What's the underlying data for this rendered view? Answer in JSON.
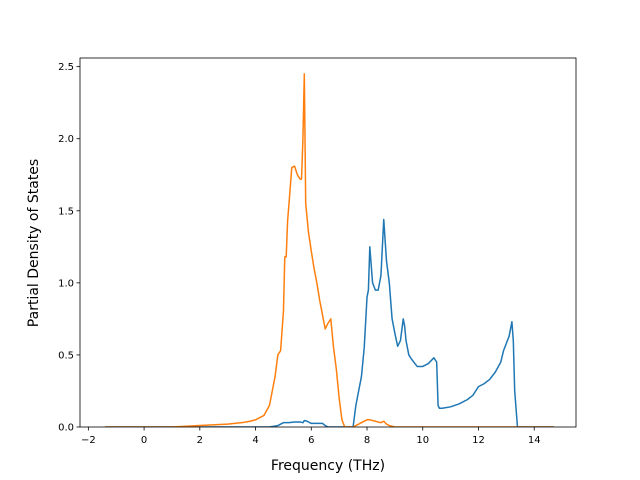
{
  "chart_data": {
    "type": "line",
    "title": "",
    "xlabel": "Frequency (THz)",
    "ylabel": "Partial Density of States",
    "xlim": [
      -2.3,
      15.5
    ],
    "ylim": [
      0,
      2.56
    ],
    "xticks": [
      -2,
      0,
      2,
      4,
      6,
      8,
      10,
      12,
      14
    ],
    "xtick_labels": [
      "−2",
      "0",
      "2",
      "4",
      "6",
      "8",
      "10",
      "12",
      "14"
    ],
    "yticks": [
      0,
      0.5,
      1.0,
      1.5,
      2.0,
      2.5
    ],
    "ytick_labels": [
      "0.0",
      "0.5",
      "1.0",
      "1.5",
      "2.0",
      "2.5"
    ],
    "grid": false,
    "legend": "none",
    "series": [
      {
        "color": "#1f77b4",
        "x": [
          -1.4,
          4.0,
          4.5,
          4.8,
          5.0,
          5.2,
          5.4,
          5.6,
          5.7,
          5.75,
          5.85,
          6.0,
          6.2,
          6.4,
          6.5,
          6.6,
          7.0,
          7.5,
          7.6,
          7.7,
          7.8,
          7.85,
          7.9,
          8.0,
          8.05,
          8.1,
          8.2,
          8.3,
          8.4,
          8.5,
          8.6,
          8.7,
          8.8,
          8.9,
          9.0,
          9.1,
          9.2,
          9.3,
          9.35,
          9.4,
          9.5,
          9.6,
          9.8,
          10.0,
          10.2,
          10.4,
          10.5,
          10.55,
          10.6,
          10.7,
          11.0,
          11.3,
          11.6,
          11.8,
          12.0,
          12.2,
          12.4,
          12.6,
          12.8,
          12.9,
          13.0,
          13.1,
          13.2,
          13.25,
          13.3,
          13.4,
          13.5,
          14.7
        ],
        "y": [
          0.0,
          0.0,
          0.0,
          0.01,
          0.03,
          0.03,
          0.035,
          0.035,
          0.03,
          0.045,
          0.04,
          0.025,
          0.025,
          0.025,
          0.01,
          0.0,
          0.0,
          0.0,
          0.15,
          0.25,
          0.35,
          0.45,
          0.55,
          0.9,
          0.95,
          1.25,
          1.0,
          0.95,
          0.95,
          1.05,
          1.44,
          1.15,
          1.0,
          0.75,
          0.65,
          0.56,
          0.6,
          0.75,
          0.7,
          0.6,
          0.5,
          0.47,
          0.42,
          0.42,
          0.44,
          0.48,
          0.45,
          0.15,
          0.13,
          0.13,
          0.14,
          0.16,
          0.19,
          0.22,
          0.28,
          0.3,
          0.33,
          0.38,
          0.45,
          0.53,
          0.58,
          0.63,
          0.73,
          0.6,
          0.25,
          0.0,
          0.0,
          0.0
        ]
      },
      {
        "color": "#ff7f0e",
        "x": [
          -1.4,
          0.0,
          1.0,
          2.0,
          3.0,
          3.5,
          3.8,
          4.0,
          4.2,
          4.3,
          4.5,
          4.6,
          4.7,
          4.8,
          4.9,
          5.0,
          5.05,
          5.1,
          5.15,
          5.2,
          5.3,
          5.4,
          5.5,
          5.6,
          5.65,
          5.7,
          5.75,
          5.8,
          5.9,
          6.0,
          6.1,
          6.2,
          6.3,
          6.4,
          6.5,
          6.6,
          6.7,
          6.8,
          6.9,
          7.0,
          7.1,
          7.2,
          7.5,
          7.8,
          8.0,
          8.1,
          8.3,
          8.5,
          8.6,
          8.7,
          8.8,
          9.0,
          10.0,
          12.0,
          14.7
        ],
        "y": [
          0.0,
          0.0,
          0.0,
          0.01,
          0.02,
          0.03,
          0.04,
          0.05,
          0.07,
          0.08,
          0.15,
          0.25,
          0.35,
          0.5,
          0.53,
          0.8,
          1.18,
          1.18,
          1.43,
          1.55,
          1.8,
          1.81,
          1.75,
          1.72,
          1.72,
          2.0,
          2.45,
          1.55,
          1.35,
          1.22,
          1.1,
          1.0,
          0.88,
          0.78,
          0.68,
          0.72,
          0.75,
          0.55,
          0.4,
          0.2,
          0.05,
          0.0,
          0.0,
          0.03,
          0.05,
          0.05,
          0.04,
          0.03,
          0.04,
          0.02,
          0.01,
          0.0,
          0.0,
          0.0,
          0.0
        ]
      }
    ]
  }
}
